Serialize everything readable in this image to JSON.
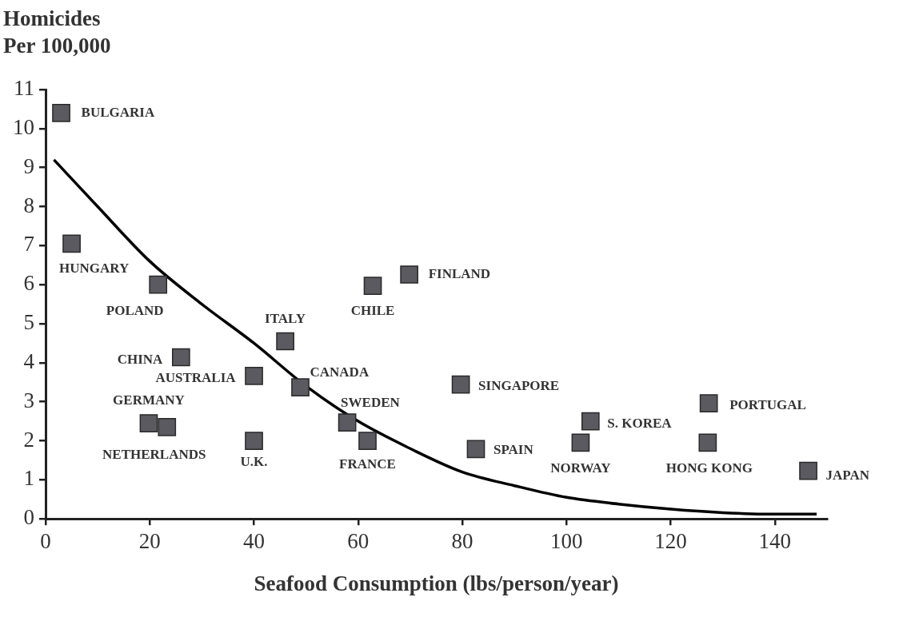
{
  "chart_data": {
    "type": "scatter",
    "xlabel": "Seafood Consumption (lbs/person/year)",
    "ylabel": "Homicides\nPer 100,000",
    "xlim": [
      0,
      150
    ],
    "xticks": [
      0,
      20,
      40,
      60,
      80,
      100,
      120,
      140
    ],
    "ylim": [
      0,
      11
    ],
    "yticks": [
      0,
      1,
      2,
      3,
      4,
      5,
      6,
      7,
      8,
      9,
      10,
      11
    ],
    "grid": false,
    "legend": false,
    "marker": "square",
    "series": [
      {
        "type": "scatter",
        "color": "#5a5a60",
        "x": [
          3,
          5,
          21.6,
          26,
          40,
          19.8,
          23.3,
          40,
          46,
          48.9,
          57.9,
          61.8,
          62.8,
          69.8,
          79.7,
          82.6,
          104.6,
          102.7,
          127.3,
          127.1,
          146.4
        ],
        "values": [
          10.4,
          7.05,
          6,
          4.14,
          3.66,
          2.45,
          2.35,
          2,
          4.55,
          3.37,
          2.47,
          2,
          5.97,
          6.26,
          3.44,
          1.79,
          2.5,
          1.95,
          2.96,
          1.95,
          1.23
        ]
      },
      {
        "type": "line",
        "color": "#000000",
        "marker": "none",
        "line_style": "solid",
        "x": [
          1.6,
          10,
          20,
          30,
          40,
          50,
          60,
          70,
          80,
          90,
          100,
          110,
          120,
          130,
          140,
          148
        ],
        "values": [
          9.2,
          8.0,
          6.6,
          5.5,
          4.5,
          3.4,
          2.5,
          1.8,
          1.2,
          0.85,
          0.55,
          0.38,
          0.25,
          0.16,
          0.12,
          0.12
        ]
      }
    ],
    "annotations": [
      {
        "text": "BULGARIA",
        "x": 3,
        "y": 10.4
      },
      {
        "text": "HUNGARY",
        "x": 5,
        "y": 7.05
      },
      {
        "text": "POLAND",
        "x": 21.6,
        "y": 6
      },
      {
        "text": "CHINA",
        "x": 26,
        "y": 4.14
      },
      {
        "text": "AUSTRALIA",
        "x": 40,
        "y": 3.66
      },
      {
        "text": "GERMANY",
        "x": 19.8,
        "y": 2.45
      },
      {
        "text": "NETHERLANDS",
        "x": 23.3,
        "y": 2.35
      },
      {
        "text": "U.K.",
        "x": 40,
        "y": 2
      },
      {
        "text": "ITALY",
        "x": 46,
        "y": 4.55
      },
      {
        "text": "CANADA",
        "x": 48.9,
        "y": 3.37
      },
      {
        "text": "SWEDEN",
        "x": 57.9,
        "y": 2.47
      },
      {
        "text": "FRANCE",
        "x": 61.8,
        "y": 2
      },
      {
        "text": "CHILE",
        "x": 62.8,
        "y": 5.97
      },
      {
        "text": "FINLAND",
        "x": 69.8,
        "y": 6.26
      },
      {
        "text": "SINGAPORE",
        "x": 79.7,
        "y": 3.44
      },
      {
        "text": "SPAIN",
        "x": 82.6,
        "y": 1.79
      },
      {
        "text": "S. KOREA",
        "x": 104.6,
        "y": 2.5
      },
      {
        "text": "NORWAY",
        "x": 102.7,
        "y": 1.95
      },
      {
        "text": "PORTUGAL",
        "x": 127.3,
        "y": 2.96
      },
      {
        "text": "HONG KONG",
        "x": 127.1,
        "y": 1.95
      },
      {
        "text": "JAPAN",
        "x": 146.4,
        "y": 1.23
      }
    ]
  }
}
